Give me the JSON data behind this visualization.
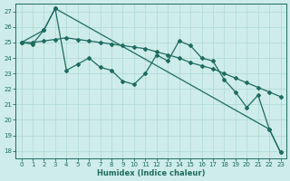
{
  "title": "",
  "xlabel": "Humidex (Indice chaleur)",
  "xlim": [
    -0.5,
    23.5
  ],
  "ylim": [
    17.5,
    27.5
  ],
  "yticks": [
    18,
    19,
    20,
    21,
    22,
    23,
    24,
    25,
    26,
    27
  ],
  "xticks": [
    0,
    1,
    2,
    3,
    4,
    5,
    6,
    7,
    8,
    9,
    10,
    11,
    12,
    13,
    14,
    15,
    16,
    17,
    18,
    19,
    20,
    21,
    22,
    23
  ],
  "bg_color": "#ceecea",
  "grid_color": "#aed8d4",
  "line_color": "#1e6b60",
  "line1_x": [
    0,
    1,
    2,
    3,
    4,
    5,
    6,
    7,
    8,
    9,
    10,
    11,
    12,
    13,
    14,
    15,
    16,
    17,
    18,
    19,
    20,
    21,
    22,
    23
  ],
  "line1_y": [
    25.0,
    24.9,
    25.8,
    27.2,
    23.2,
    23.6,
    24.0,
    23.4,
    23.2,
    22.5,
    22.3,
    23.0,
    24.2,
    23.8,
    25.1,
    24.8,
    24.0,
    23.8,
    22.6,
    21.8,
    20.8,
    21.6,
    19.4,
    17.9
  ],
  "line2_x": [
    0,
    1,
    2,
    3,
    4,
    5,
    6,
    7,
    8,
    9,
    10,
    11,
    12,
    13,
    14,
    15,
    16,
    17,
    18,
    19,
    20,
    21,
    22,
    23
  ],
  "line2_y": [
    25.0,
    25.0,
    25.1,
    25.2,
    25.3,
    25.2,
    25.1,
    25.0,
    24.9,
    24.8,
    24.7,
    24.6,
    24.4,
    24.2,
    24.0,
    23.7,
    23.5,
    23.3,
    23.0,
    22.7,
    22.4,
    22.1,
    21.8,
    21.5
  ],
  "line3_x": [
    0,
    2,
    3,
    22,
    23
  ],
  "line3_y": [
    25.0,
    25.8,
    27.2,
    19.4,
    17.9
  ]
}
